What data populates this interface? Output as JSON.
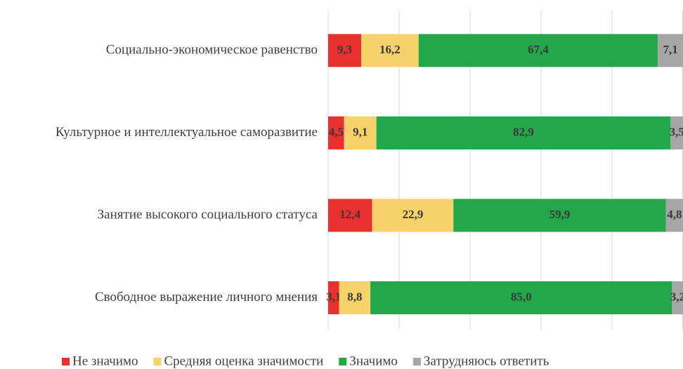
{
  "chart_data": {
    "type": "stacked-bar-horizontal",
    "categories": [
      "Социально-экономическое равенство",
      "Культурное и интеллектуальное саморазвитие",
      "Занятие высокого социального статуса",
      "Свободное выражение личного мнения"
    ],
    "series": [
      {
        "name": "Не значимо",
        "color": "#e8302e",
        "values": [
          9.3,
          4.5,
          12.4,
          3.1
        ],
        "value_labels": [
          "9,3",
          "4,5",
          "12,4",
          "3,1"
        ]
      },
      {
        "name": "Средняя оценка значимости",
        "color": "#f7d26b",
        "values": [
          16.2,
          9.1,
          22.9,
          8.8
        ],
        "value_labels": [
          "16,2",
          "9,1",
          "22,9",
          "8,8"
        ]
      },
      {
        "name": "Значимо",
        "color": "#22a84a",
        "values": [
          67.4,
          82.9,
          59.9,
          85.0
        ],
        "value_labels": [
          "67,4",
          "82,9",
          "59,9",
          "85,0"
        ]
      },
      {
        "name": "Затрудняюсь ответить",
        "color": "#a6a6a6",
        "values": [
          7.1,
          3.5,
          4.8,
          3.2
        ],
        "value_labels": [
          "7,1",
          "3,5",
          "4,8",
          "3,2"
        ]
      }
    ],
    "xlim": [
      0,
      100
    ],
    "xticks": [
      0,
      20,
      40,
      60,
      80,
      100
    ],
    "grid": true,
    "legend": "bottom"
  }
}
